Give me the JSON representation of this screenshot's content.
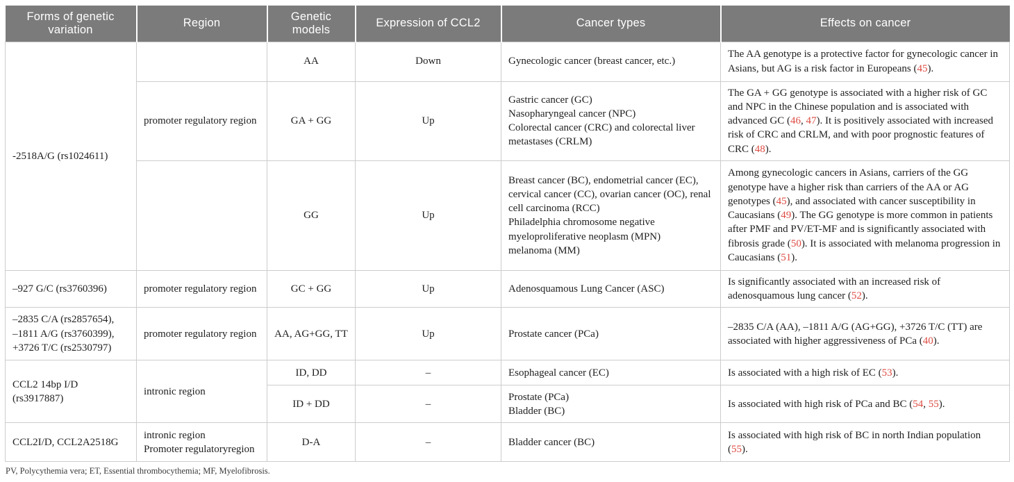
{
  "colors": {
    "header_bg": "#7b7b7b",
    "header_text": "#ffffff",
    "citation_red": "#dd4b42",
    "border": "#cccccc",
    "body_text": "#212121"
  },
  "header": {
    "columns": [
      "Forms of genetic variation",
      "Region",
      "Genetic models",
      "Expression of CCL2",
      "Cancer types",
      "Effects on cancer"
    ]
  },
  "rows": [
    {
      "cells": [
        {
          "col": 0,
          "rowspan": 3,
          "text": "-2518A/G (rs1024611)"
        },
        {
          "col": 1,
          "text": ""
        },
        {
          "col": 2,
          "text": "AA"
        },
        {
          "col": 3,
          "text": "Down"
        },
        {
          "col": 4,
          "lines": [
            "Gynecologic cancer (breast cancer, etc.)"
          ]
        },
        {
          "col": 5,
          "segments": [
            {
              "t": "The AA genotype is a protective factor for gynecologic cancer in Asians, but AG is a risk factor in Europeans ("
            },
            {
              "t": "45",
              "red": true
            },
            {
              "t": ")."
            }
          ]
        }
      ]
    },
    {
      "cells": [
        {
          "col": 1,
          "text": "promoter regulatory region"
        },
        {
          "col": 2,
          "text": "GA + GG"
        },
        {
          "col": 3,
          "text": "Up"
        },
        {
          "col": 4,
          "lines": [
            "Gastric cancer (GC)",
            "Nasopharyngeal cancer (NPC)",
            "Colorectal cancer (CRC) and colorectal liver metastases (CRLM)"
          ]
        },
        {
          "col": 5,
          "segments": [
            {
              "t": "The GA + GG genotype is associated with a higher risk of GC and NPC in the Chinese population and is associated with advanced GC ("
            },
            {
              "t": "46",
              "red": true
            },
            {
              "t": ", "
            },
            {
              "t": "47",
              "red": true
            },
            {
              "t": "). It is positively associated with increased risk of CRC and CRLM, and with poor prognostic features of CRC ("
            },
            {
              "t": "48",
              "red": true
            },
            {
              "t": ")."
            }
          ]
        }
      ]
    },
    {
      "cells": [
        {
          "col": 1,
          "text": ""
        },
        {
          "col": 2,
          "text": "GG"
        },
        {
          "col": 3,
          "text": "Up"
        },
        {
          "col": 4,
          "lines": [
            "Breast cancer (BC), endometrial cancer (EC), cervical cancer (CC), ovarian cancer (OC), renal cell carcinoma (RCC)",
            "Philadelphia chromosome negative myeloproliferative neoplasm (MPN)",
            "melanoma (MM)"
          ]
        },
        {
          "col": 5,
          "segments": [
            {
              "t": "Among gynecologic cancers in Asians, carriers of the GG genotype have a higher risk than carriers of the AA or AG genotypes ("
            },
            {
              "t": "45",
              "red": true
            },
            {
              "t": "), and associated with cancer susceptibility in Caucasians ("
            },
            {
              "t": "49",
              "red": true
            },
            {
              "t": "). The GG genotype is more common in patients after PMF and PV/ET-MF and is significantly associated with fibrosis grade ("
            },
            {
              "t": "50",
              "red": true
            },
            {
              "t": "). It is associated with melanoma progression in Caucasians ("
            },
            {
              "t": "51",
              "red": true
            },
            {
              "t": ")."
            }
          ]
        }
      ]
    },
    {
      "cells": [
        {
          "col": 0,
          "text": "–927 G/C (rs3760396)"
        },
        {
          "col": 1,
          "text": "promoter regulatory region"
        },
        {
          "col": 2,
          "text": "GC + GG"
        },
        {
          "col": 3,
          "text": "Up"
        },
        {
          "col": 4,
          "lines": [
            "Adenosquamous Lung Cancer (ASC)"
          ]
        },
        {
          "col": 5,
          "segments": [
            {
              "t": "Is significantly associated with an increased risk of adenosquamous lung cancer ("
            },
            {
              "t": "52",
              "red": true
            },
            {
              "t": ")."
            }
          ]
        }
      ]
    },
    {
      "cells": [
        {
          "col": 0,
          "lines": [
            "–2835 C/A (rs2857654),",
            "–1811 A/G (rs3760399),",
            "+3726 T/C (rs2530797)"
          ]
        },
        {
          "col": 1,
          "text": "promoter regulatory region"
        },
        {
          "col": 2,
          "text": "AA, AG+GG, TT"
        },
        {
          "col": 3,
          "text": "Up"
        },
        {
          "col": 4,
          "lines": [
            "Prostate cancer (PCa)"
          ]
        },
        {
          "col": 5,
          "segments": [
            {
              "t": "–2835 C/A (AA), –1811 A/G (AG+GG), +3726 T/C (TT) are associated with higher aggressiveness of PCa ("
            },
            {
              "t": "40",
              "red": true
            },
            {
              "t": ")."
            }
          ]
        }
      ]
    },
    {
      "cells": [
        {
          "col": 0,
          "rowspan": 2,
          "text": "CCL2 14bp I/D (rs3917887)"
        },
        {
          "col": 1,
          "rowspan": 2,
          "text": "intronic region"
        },
        {
          "col": 2,
          "text": "ID, DD"
        },
        {
          "col": 3,
          "text": "–"
        },
        {
          "col": 4,
          "lines": [
            "Esophageal cancer (EC)"
          ]
        },
        {
          "col": 5,
          "segments": [
            {
              "t": "Is associated with a high risk of EC ("
            },
            {
              "t": "53",
              "red": true
            },
            {
              "t": ")."
            }
          ]
        }
      ]
    },
    {
      "cells": [
        {
          "col": 2,
          "text": "ID + DD"
        },
        {
          "col": 3,
          "text": "–"
        },
        {
          "col": 4,
          "lines": [
            "Prostate (PCa)",
            "Bladder (BC)"
          ]
        },
        {
          "col": 5,
          "segments": [
            {
              "t": "Is associated with high risk of PCa and BC ("
            },
            {
              "t": "54",
              "red": true
            },
            {
              "t": ", "
            },
            {
              "t": "55",
              "red": true
            },
            {
              "t": ")."
            }
          ]
        }
      ]
    },
    {
      "cells": [
        {
          "col": 0,
          "text": "CCL2I/D, CCL2A2518G"
        },
        {
          "col": 1,
          "lines": [
            "intronic region",
            "Promoter regulatoryregion"
          ]
        },
        {
          "col": 2,
          "text": "D-A"
        },
        {
          "col": 3,
          "text": "–"
        },
        {
          "col": 4,
          "lines": [
            "Bladder cancer (BC)"
          ]
        },
        {
          "col": 5,
          "segments": [
            {
              "t": "Is associated with high risk of BC in north Indian population ("
            },
            {
              "t": "55",
              "red": true
            },
            {
              "t": ")."
            }
          ]
        }
      ]
    }
  ],
  "footnote": "PV, Polycythemia vera; ET, Essential thrombocythemia; MF, Myelofibrosis."
}
